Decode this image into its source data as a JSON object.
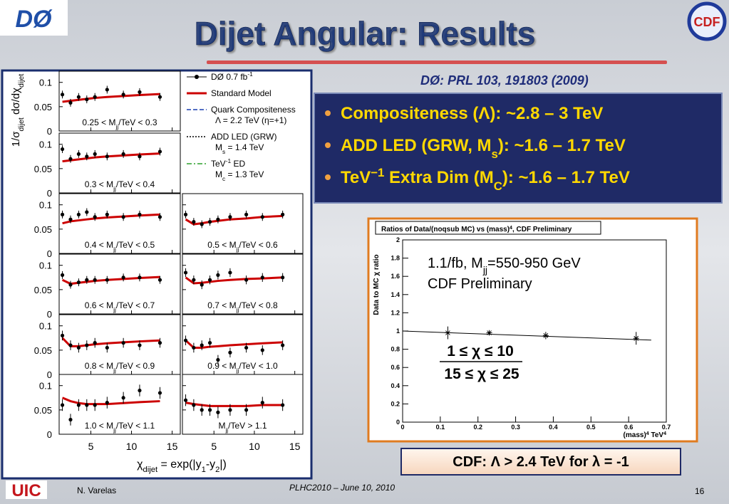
{
  "header": {
    "title": "Dijet Angular: Results",
    "logo_left": "DØ",
    "logo_right": "CDF",
    "reference": "DØ: PRL 103, 191803 (2009)"
  },
  "bullets": [
    [
      "Compositeness (Λ): ~2.8 – 3 TeV"
    ],
    [
      "ADD LED (GRW, M",
      {
        "sub": "s"
      },
      "): ~1.6 – 1.7 TeV"
    ],
    [
      "TeV",
      {
        "sup": "−1"
      },
      " Extra Dim (M",
      {
        "sub": "C"
      },
      "): ~1.6 – 1.7 TeV"
    ]
  ],
  "left_figure": {
    "type": "multi-panel-scatter",
    "y_label": [
      "1/σ",
      {
        "sub": "dijet"
      },
      " dσ/dχ",
      {
        "sub": "dijet"
      }
    ],
    "x_label": [
      "χ",
      {
        "sub": "dijet"
      },
      " = exp(|y",
      {
        "sub": "1"
      },
      "-y",
      {
        "sub": "2"
      },
      "|)"
    ],
    "xlim": [
      1.1,
      16
    ],
    "xticks": [
      5,
      10,
      15
    ],
    "ylim": [
      0,
      0.123
    ],
    "yticks": [
      0,
      0.05,
      0.1
    ],
    "chi": [
      1.5,
      2.5,
      3.5,
      4.5,
      5.5,
      7,
      9,
      11,
      13.5
    ],
    "legend": [
      {
        "lines": [
          [
            "DØ   0.7 fb",
            {
              "sup": "-1"
            }
          ]
        ],
        "color": "#000000",
        "style": "points"
      },
      {
        "lines": [
          [
            "Standard Model"
          ]
        ],
        "color": "#cc0000",
        "style": "solid"
      },
      {
        "lines": [
          [
            "Quark Compositeness"
          ],
          [
            "Λ = 2.2 TeV   (η=+1)"
          ]
        ],
        "color": "#1a3fb0",
        "style": "dashed"
      },
      {
        "lines": [
          [
            "ADD LED  (GRW)"
          ],
          [
            "M",
            {
              "sub": "s"
            },
            " = 1.4 TeV"
          ]
        ],
        "color": "#000000",
        "style": "dotted"
      },
      {
        "lines": [
          [
            "TeV",
            {
              "sup": "-1"
            },
            " ED"
          ],
          [
            "M",
            {
              "sub": "c"
            },
            " = 1.3 TeV"
          ]
        ],
        "color": "#2ca02c",
        "style": "dashdot"
      }
    ],
    "panels": [
      {
        "label": [
          "0.25 < M",
          {
            "sub": "jj"
          },
          "/TeV < 0.3"
        ],
        "values": [
          0.075,
          0.058,
          0.07,
          0.065,
          0.07,
          0.085,
          0.075,
          0.08,
          0.07
        ],
        "error": 0.008,
        "sm": [
          0.06,
          0.062,
          0.064,
          0.066,
          0.068,
          0.07,
          0.072,
          0.074,
          0.076
        ]
      },
      {
        "label": [
          "0.3 < M",
          {
            "sub": "jj"
          },
          "/TeV < 0.4"
        ],
        "values": [
          0.09,
          0.07,
          0.08,
          0.075,
          0.08,
          0.075,
          0.08,
          0.075,
          0.085
        ],
        "error": 0.008,
        "sm": [
          0.065,
          0.067,
          0.069,
          0.071,
          0.073,
          0.075,
          0.077,
          0.079,
          0.081
        ]
      },
      {
        "label": [
          "0.4 < M",
          {
            "sub": "jj"
          },
          "/TeV < 0.5"
        ],
        "values": [
          0.08,
          0.07,
          0.08,
          0.085,
          0.075,
          0.08,
          0.075,
          0.08,
          0.075
        ],
        "error": 0.008,
        "sm": [
          0.062,
          0.066,
          0.068,
          0.07,
          0.072,
          0.074,
          0.076,
          0.078,
          0.08
        ]
      },
      {
        "label": [
          "0.5 < M",
          {
            "sub": "jj"
          },
          "/TeV < 0.6"
        ],
        "values": [
          0.08,
          0.065,
          0.06,
          0.065,
          0.07,
          0.075,
          0.08,
          0.075,
          0.08
        ],
        "error": 0.008,
        "sm": [
          0.07,
          0.06,
          0.062,
          0.065,
          0.067,
          0.07,
          0.072,
          0.075,
          0.077
        ]
      },
      {
        "label": [
          "0.6 < M",
          {
            "sub": "jj"
          },
          "/TeV < 0.7"
        ],
        "values": [
          0.08,
          0.06,
          0.065,
          0.07,
          0.07,
          0.07,
          0.075,
          0.075,
          0.07
        ],
        "error": 0.008,
        "sm": [
          0.07,
          0.062,
          0.064,
          0.066,
          0.068,
          0.07,
          0.072,
          0.074,
          0.076
        ]
      },
      {
        "label": [
          "0.7 < M",
          {
            "sub": "jj"
          },
          "/TeV < 0.8"
        ],
        "values": [
          0.085,
          0.07,
          0.06,
          0.07,
          0.08,
          0.085,
          0.07,
          0.075,
          0.075
        ],
        "error": 0.009,
        "sm": [
          0.075,
          0.063,
          0.064,
          0.066,
          0.068,
          0.07,
          0.072,
          0.073,
          0.075
        ]
      },
      {
        "label": [
          "0.8 < M",
          {
            "sub": "jj"
          },
          "/TeV < 0.9"
        ],
        "values": [
          0.08,
          0.06,
          0.055,
          0.06,
          0.065,
          0.055,
          0.065,
          0.06,
          0.065
        ],
        "error": 0.01,
        "sm": [
          0.075,
          0.058,
          0.058,
          0.06,
          0.062,
          0.064,
          0.066,
          0.068,
          0.07
        ]
      },
      {
        "label": [
          "0.9 < M",
          {
            "sub": "jj"
          },
          "/TeV < 1.0"
        ],
        "values": [
          0.07,
          0.055,
          0.06,
          0.065,
          0.03,
          0.045,
          0.055,
          0.05,
          0.06
        ],
        "error": 0.01,
        "sm": [
          0.07,
          0.055,
          0.055,
          0.057,
          0.058,
          0.06,
          0.062,
          0.064,
          0.066
        ]
      },
      {
        "label": [
          "1.0 < M",
          {
            "sub": "jj"
          },
          "/TeV < 1.1"
        ],
        "values": [
          0.06,
          0.03,
          0.06,
          0.06,
          0.06,
          0.065,
          0.075,
          0.09,
          0.085
        ],
        "error": 0.012,
        "sm": [
          0.075,
          0.068,
          0.064,
          0.062,
          0.062,
          0.062,
          0.064,
          0.066,
          0.068
        ]
      },
      {
        "label": [
          "M",
          {
            "sub": "jj"
          },
          "/TeV > 1.1"
        ],
        "values": [
          0.07,
          0.06,
          0.05,
          0.05,
          0.045,
          0.05,
          0.05,
          0.065,
          0.06
        ],
        "error": 0.012,
        "sm": [
          0.065,
          0.062,
          0.06,
          0.058,
          0.058,
          0.058,
          0.058,
          0.06,
          0.06
        ]
      }
    ]
  },
  "cdf_chart": {
    "type": "scatter",
    "title": [
      "Ratios of Data/(noqsub MC) vs (mass)",
      {
        "sup": "4"
      },
      ", CDF Preliminary"
    ],
    "y_label": [
      "Data to MC χ ratio"
    ],
    "x_label": [
      "(mass)",
      {
        "sup": "4"
      },
      " TeV",
      {
        "sup": "4"
      }
    ],
    "annotations": [
      [
        "1.1/fb, M",
        {
          "sub": "jj"
        },
        "=550-950 GeV"
      ],
      [
        "CDF Preliminary"
      ]
    ],
    "fraction": {
      "numerator": "1 ≤ χ ≤ 10",
      "denominator": "15 ≤ χ ≤ 25"
    },
    "xlim": [
      0,
      0.7
    ],
    "xticks": [
      0,
      0.1,
      0.2,
      0.3,
      0.4,
      0.5,
      0.6,
      0.7
    ],
    "ylim": [
      0,
      2
    ],
    "yticks": [
      0,
      0.2,
      0.4,
      0.6,
      0.8,
      1,
      1.2,
      1.4,
      1.6,
      1.8,
      2
    ],
    "x": [
      0.12,
      0.23,
      0.38,
      0.62
    ],
    "values": [
      0.98,
      0.98,
      0.95,
      0.92
    ],
    "errors": [
      0.07,
      0.03,
      0.04,
      0.07
    ],
    "fit": {
      "x": [
        0,
        0.66
      ],
      "values": [
        1.0,
        0.9
      ]
    }
  },
  "result": "CDF: Λ > 2.4 TeV for λ = -1",
  "footer": {
    "logo": "UIC",
    "author": "N. Varelas",
    "event": "PLHC2010 – June 10, 2010",
    "page": "16"
  }
}
